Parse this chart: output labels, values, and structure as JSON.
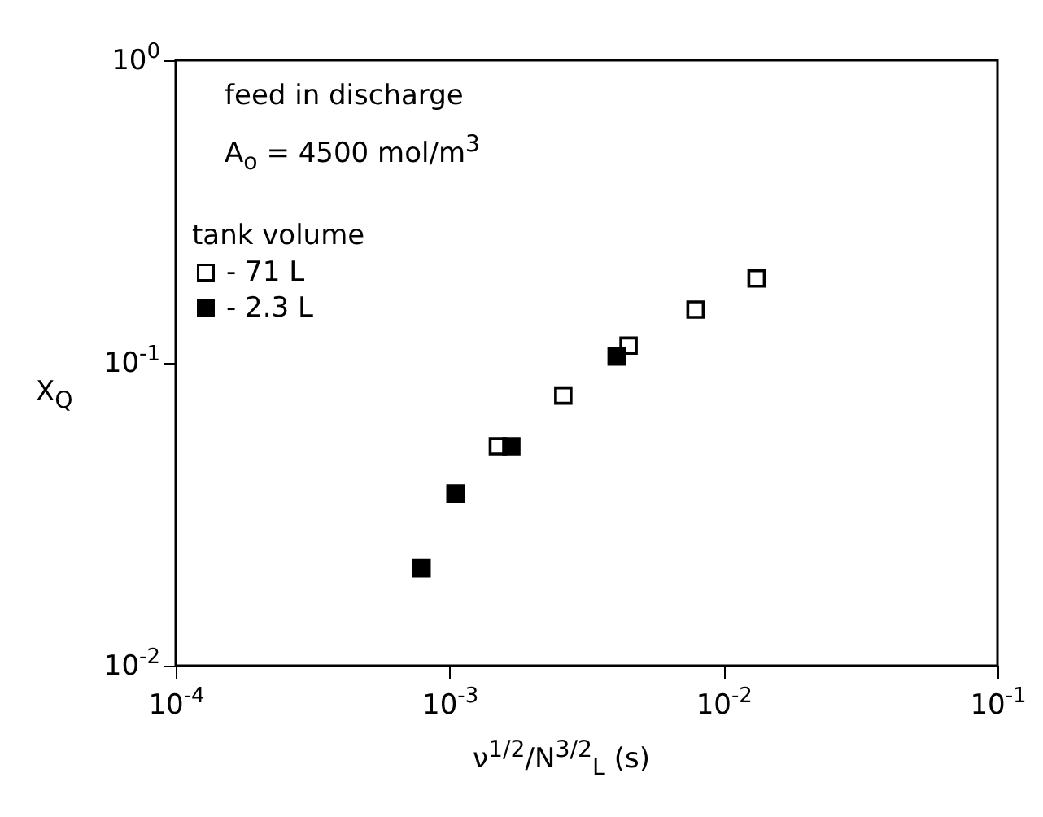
{
  "chart_data": {
    "type": "scatter",
    "xlabel": "ν$^{1/2}$/N$^{3/2}$$_{L}$ (s)",
    "ylabel": "X$_{Q}$",
    "annotations": [
      "feed in discharge",
      "A$_{o}$ = 4500 mol/m$^{3}$"
    ],
    "legend_title": "tank volume",
    "legend": "top left",
    "marker": "square",
    "log": "xy",
    "grid": false,
    "xlim": [
      0.0001,
      0.1
    ],
    "ylim": [
      0.01,
      1
    ],
    "xticks": [
      {
        "value": 0.0001,
        "label": "10$^{-4}$"
      },
      {
        "value": 0.001,
        "label": "10$^{-3}$"
      },
      {
        "value": 0.01,
        "label": "10$^{-2}$"
      },
      {
        "value": 0.1,
        "label": "10$^{-1}$"
      }
    ],
    "yticks": [
      {
        "value": 0.01,
        "label": "10$^{-2}$"
      },
      {
        "value": 0.1,
        "label": "10$^{-1}$"
      },
      {
        "value": 1,
        "label": "10$^{0}$"
      }
    ],
    "series": [
      {
        "name": "- 71 L",
        "color": "#ffffff",
        "x": [
          0.0015,
          0.0026,
          0.0045,
          0.0079,
          0.0132
        ],
        "values": [
          0.053,
          0.078,
          0.114,
          0.15,
          0.19
        ]
      },
      {
        "name": "- 2.3 L",
        "color": "#000000",
        "x": [
          0.00079,
          0.00105,
          0.00168,
          0.00407
        ],
        "values": [
          0.021,
          0.037,
          0.053,
          0.105
        ]
      }
    ]
  }
}
